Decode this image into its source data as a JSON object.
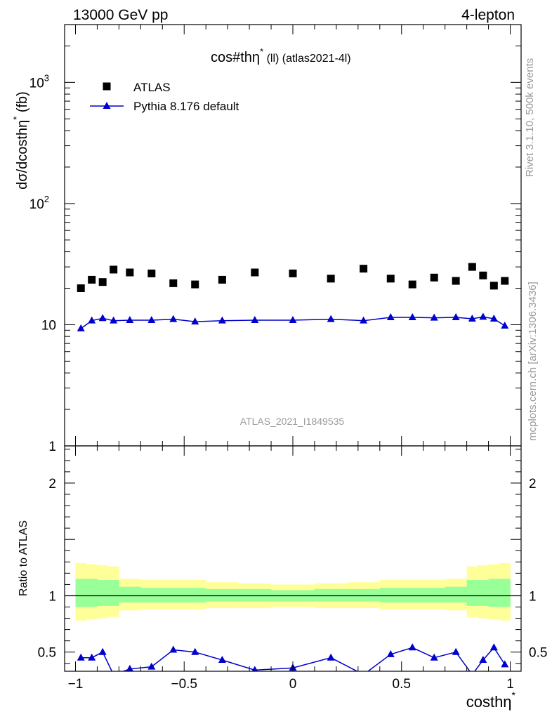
{
  "header": {
    "left": "13000 GeV pp",
    "right": "4-lepton"
  },
  "side_labels": {
    "rivet": "Rivet 3.1.10,  500k events",
    "mcplots": "mcplots.cern.ch [arXiv:1306.3436]"
  },
  "chart_data": [
    {
      "type": "scatter",
      "panel": "main",
      "title_main": "cos#thη",
      "title_sup": "*",
      "title_rest": " (ll) (atlas2021-4l)",
      "ylabel_main": "dσ/dcosthη",
      "ylabel_sup": "*",
      "ylabel_rest": " (fb)",
      "yscale": "log",
      "ylim": [
        1,
        3000
      ],
      "xlim": [
        -1.05,
        1.05
      ],
      "y_ticks": [
        {
          "value": 1,
          "base": "1",
          "exp": ""
        },
        {
          "value": 10,
          "base": "10",
          "exp": ""
        },
        {
          "value": 100,
          "base": "10",
          "exp": "2"
        },
        {
          "value": 1000,
          "base": "10",
          "exp": "3"
        }
      ],
      "watermark": "ATLAS_2021_I1849535",
      "legend": [
        {
          "label": "ATLAS",
          "marker": "square",
          "color": "#000000"
        },
        {
          "label": "Pythia 8.176 default",
          "marker": "triangle",
          "color": "#0000cc"
        }
      ],
      "legend_position": "top-left",
      "series": [
        {
          "name": "ATLAS",
          "color": "#000000",
          "marker": "square",
          "x": [
            -0.975,
            -0.925,
            -0.875,
            -0.825,
            -0.75,
            -0.65,
            -0.55,
            -0.45,
            -0.325,
            -0.175,
            0.0,
            0.175,
            0.325,
            0.45,
            0.55,
            0.65,
            0.75,
            0.825,
            0.875,
            0.925,
            0.975
          ],
          "y": [
            20,
            23.5,
            22.5,
            28.5,
            27,
            26.5,
            22,
            21.5,
            23.5,
            27,
            26.5,
            24,
            29,
            24,
            21.5,
            24.5,
            23,
            30,
            25.5,
            21,
            23
          ]
        },
        {
          "name": "Pythia 8.176 default",
          "color": "#0000cc",
          "marker": "triangle",
          "x": [
            -0.975,
            -0.925,
            -0.875,
            -0.825,
            -0.75,
            -0.65,
            -0.55,
            -0.45,
            -0.325,
            -0.175,
            0.0,
            0.175,
            0.325,
            0.45,
            0.55,
            0.65,
            0.75,
            0.825,
            0.875,
            0.925,
            0.975
          ],
          "y": [
            9.3,
            10.8,
            11.3,
            10.8,
            10.9,
            10.9,
            11.1,
            10.6,
            10.8,
            10.9,
            10.9,
            11.1,
            10.8,
            11.5,
            11.5,
            11.4,
            11.5,
            11.2,
            11.6,
            11.2,
            9.8
          ]
        }
      ]
    },
    {
      "type": "line",
      "panel": "ratio",
      "ylabel": "Ratio to ATLAS",
      "xlabel_main": "costhη",
      "xlabel_sup": "*",
      "ylim": [
        0.33,
        2.33
      ],
      "xlim": [
        -1.05,
        1.05
      ],
      "x_ticks": [
        {
          "value": -1,
          "label": "−1"
        },
        {
          "value": -0.5,
          "label": "−0.5"
        },
        {
          "value": 0,
          "label": "0"
        },
        {
          "value": 0.5,
          "label": "0.5"
        },
        {
          "value": 1,
          "label": "1"
        }
      ],
      "y_ticks": [
        {
          "value": 0.5,
          "label": "0.5"
        },
        {
          "value": 1,
          "label": "1"
        },
        {
          "value": 2,
          "label": "2"
        }
      ],
      "reference_line": 1,
      "bands": {
        "edges": [
          -1.0,
          -0.95,
          -0.9,
          -0.85,
          -0.8,
          -0.7,
          -0.6,
          -0.5,
          -0.4,
          -0.25,
          -0.1,
          0.1,
          0.25,
          0.4,
          0.5,
          0.6,
          0.7,
          0.8,
          0.85,
          0.9,
          0.95,
          1.0
        ],
        "outer_color": "#ffff99",
        "inner_color": "#99ff99",
        "outer_lo": [
          0.78,
          0.79,
          0.8,
          0.81,
          0.87,
          0.88,
          0.88,
          0.88,
          0.89,
          0.89,
          0.9,
          0.89,
          0.89,
          0.88,
          0.88,
          0.88,
          0.87,
          0.81,
          0.8,
          0.79,
          0.78
        ],
        "outer_hi": [
          1.29,
          1.28,
          1.27,
          1.26,
          1.15,
          1.14,
          1.14,
          1.14,
          1.12,
          1.11,
          1.1,
          1.11,
          1.12,
          1.14,
          1.14,
          1.14,
          1.15,
          1.26,
          1.27,
          1.28,
          1.29
        ],
        "inner_lo": [
          0.9,
          0.9,
          0.91,
          0.91,
          0.94,
          0.94,
          0.94,
          0.94,
          0.95,
          0.95,
          0.95,
          0.95,
          0.95,
          0.94,
          0.94,
          0.94,
          0.94,
          0.91,
          0.91,
          0.9,
          0.9
        ],
        "inner_hi": [
          1.15,
          1.15,
          1.14,
          1.14,
          1.08,
          1.07,
          1.07,
          1.07,
          1.06,
          1.06,
          1.05,
          1.06,
          1.06,
          1.07,
          1.07,
          1.07,
          1.08,
          1.14,
          1.14,
          1.15,
          1.15
        ]
      },
      "series": [
        {
          "name": "Pythia 8.176 default",
          "color": "#0000cc",
          "marker": "triangle",
          "x": [
            -0.975,
            -0.925,
            -0.875,
            -0.825,
            -0.75,
            -0.65,
            -0.55,
            -0.45,
            -0.325,
            -0.175,
            0.0,
            0.175,
            0.325,
            0.45,
            0.55,
            0.65,
            0.75,
            0.825,
            0.875,
            0.925,
            0.975
          ],
          "y": [
            0.45,
            0.45,
            0.5,
            0.3,
            0.35,
            0.37,
            0.52,
            0.5,
            0.43,
            0.34,
            0.36,
            0.45,
            0.3,
            0.48,
            0.54,
            0.45,
            0.5,
            0.3,
            0.43,
            0.54,
            0.39
          ]
        }
      ]
    }
  ]
}
